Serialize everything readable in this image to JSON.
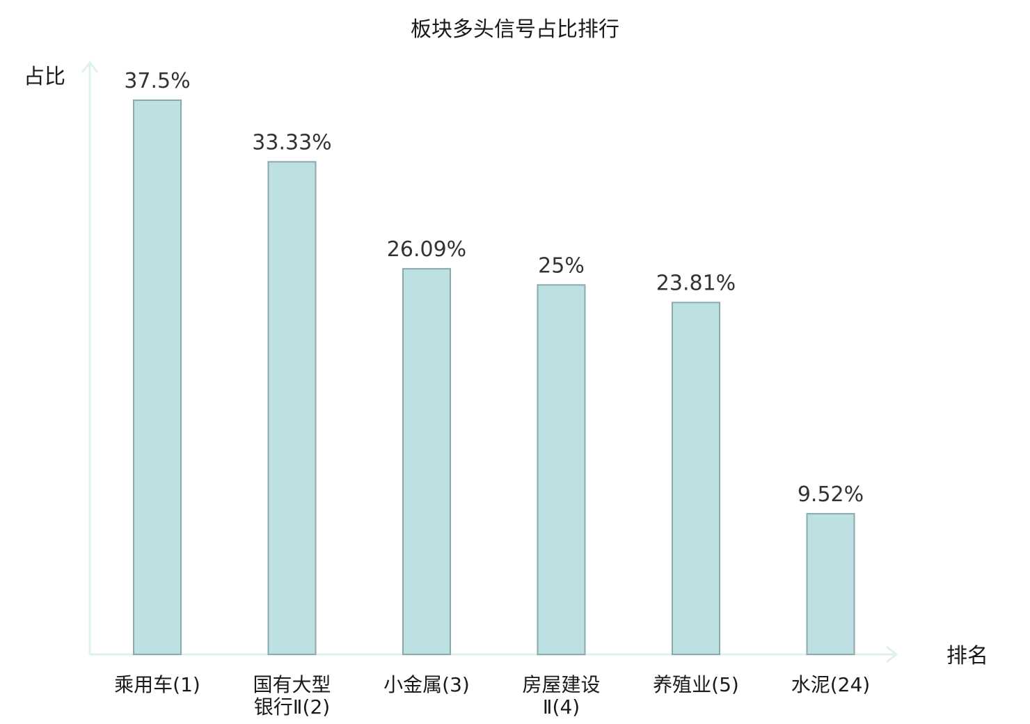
{
  "chart_data": {
    "type": "bar",
    "title": "板块多头信号占比排行",
    "xlabel": "排名",
    "ylabel": "占比",
    "ylim": [
      0,
      40
    ],
    "grid": false,
    "legend": "none",
    "categories": [
      {
        "name": "乘用车",
        "rank": "(1)",
        "lines": [
          "乘用车(1)"
        ]
      },
      {
        "name": "国有大型银行Ⅱ",
        "rank": "(2)",
        "lines": [
          "国有大型",
          "银行Ⅱ(2)"
        ]
      },
      {
        "name": "小金属",
        "rank": "(3)",
        "lines": [
          "小金属(3)"
        ]
      },
      {
        "name": "房屋建设Ⅱ",
        "rank": "(4)",
        "lines": [
          "房屋建设",
          "Ⅱ(4)"
        ]
      },
      {
        "name": "养殖业",
        "rank": "(5)",
        "lines": [
          "养殖业(5)"
        ]
      },
      {
        "name": "水泥",
        "rank": "(24)",
        "lines": [
          "水泥(24)"
        ],
        "highlight": true
      }
    ],
    "values": [
      37.5,
      33.33,
      26.09,
      25,
      23.81,
      9.52
    ],
    "value_labels": [
      "37.5%",
      "33.33%",
      "26.09%",
      "25%",
      "23.81%",
      "9.52%"
    ],
    "colors": {
      "bar_fill": "#bde1e3",
      "bar_stroke": "#8aa9ab",
      "axis": "#ddf1ef",
      "highlight_label": "#cc0000"
    }
  }
}
